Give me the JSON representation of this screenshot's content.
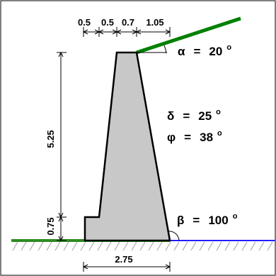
{
  "diagram": {
    "top_dimensions": [
      "0.5",
      "0.5",
      "0.7",
      "1.05"
    ],
    "wall_height": "5.25",
    "toe_height": "0.75",
    "base_width": "2.75",
    "params": {
      "alpha": {
        "symbol": "α",
        "equals": "=",
        "value": "20",
        "unit": "o"
      },
      "delta": {
        "symbol": "δ",
        "equals": "=",
        "value": "25",
        "unit": "o"
      },
      "phi": {
        "symbol": "φ",
        "equals": "=",
        "value": "38",
        "unit": "o"
      },
      "beta": {
        "symbol": "β",
        "equals": "=",
        "value": "100",
        "unit": "o"
      }
    },
    "colors": {
      "wall_fill": "#c8c8c8",
      "backfill_line": "#008000",
      "ground_line_left": "#2e8b22",
      "ground_line_right": "#0000ff",
      "hatch": "#999999",
      "frame": "#000000"
    }
  }
}
